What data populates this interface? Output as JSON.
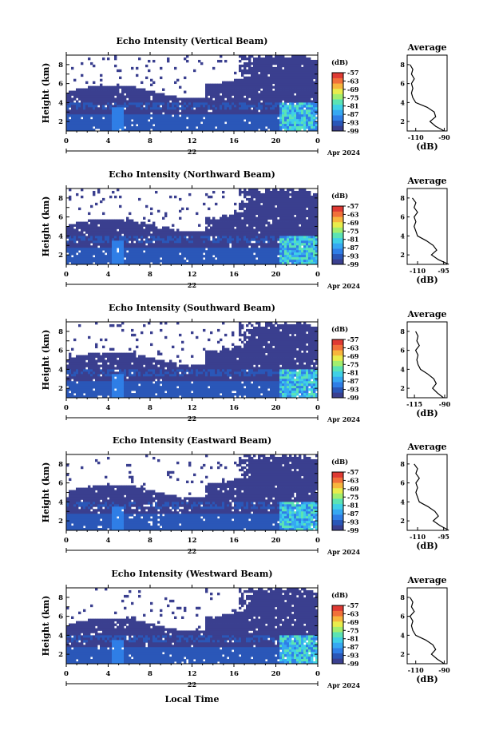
{
  "figure": {
    "xlabel_bottom": "Local Time",
    "colors": [
      "#3a3f8f",
      "#2a57b8",
      "#2f7ee6",
      "#36a8f2",
      "#3fd0e6",
      "#5be3b4",
      "#a2ee6e",
      "#e8ec4c",
      "#f7b53d",
      "#f1703a",
      "#df3a33"
    ]
  },
  "chart_data": [
    {
      "type": "heatmap",
      "title": "Echo Intensity (Vertical Beam)",
      "ylabel": "Height (km)",
      "yticks": [
        "2",
        "4",
        "6",
        "8"
      ],
      "xticks": [
        "0",
        "4",
        "8",
        "12",
        "16",
        "20",
        "0"
      ],
      "date_label": "22",
      "month_label": "Apr 2024",
      "colorbar_unit": "(dB)",
      "colorbar_ticks": [
        "-57",
        "-63",
        "-69",
        "-75",
        "-81",
        "-87",
        "-93",
        "-99"
      ],
      "avg_title": "Average",
      "avg_xticks": [
        "-110",
        "-90"
      ],
      "avg_xlabel": "(dB)",
      "avg_yticks": [
        "2",
        "4",
        "6",
        "8"
      ],
      "profile": {
        "height": [
          1.0,
          1.5,
          2.0,
          2.5,
          3.0,
          3.5,
          4.0,
          4.5,
          5.0,
          5.5,
          6.0,
          6.5,
          7.0,
          7.5,
          8.0
        ],
        "db": [
          -90,
          -96,
          -100,
          -96,
          -97,
          -102,
          -110,
          -112,
          -113,
          -112,
          -113,
          -111,
          -113,
          -112,
          -114
        ]
      }
    },
    {
      "type": "heatmap",
      "title": "Echo Intensity (Northward Beam)",
      "ylabel": "Height (km)",
      "yticks": [
        "2",
        "4",
        "6",
        "8"
      ],
      "xticks": [
        "0",
        "4",
        "8",
        "12",
        "16",
        "20",
        "0"
      ],
      "date_label": "22",
      "month_label": "Apr 2024",
      "colorbar_unit": "(dB)",
      "colorbar_ticks": [
        "-57",
        "-63",
        "-69",
        "-75",
        "-81",
        "-87",
        "-93",
        "-99"
      ],
      "avg_title": "Average",
      "avg_xticks": [
        "-110",
        "-95"
      ],
      "avg_xlabel": "(dB)",
      "avg_yticks": [
        "2",
        "4",
        "6",
        "8"
      ],
      "profile": {
        "height": [
          1.0,
          1.5,
          2.0,
          2.5,
          3.0,
          3.5,
          4.0,
          4.5,
          5.0,
          5.5,
          6.0,
          6.5,
          7.0,
          7.5,
          8.0
        ],
        "db": [
          -92,
          -98,
          -102,
          -99,
          -101,
          -105,
          -110,
          -111,
          -112,
          -111,
          -112,
          -110,
          -112,
          -111,
          -113
        ]
      }
    },
    {
      "type": "heatmap",
      "title": "Echo Intensity (Southward Beam)",
      "ylabel": "Height (km)",
      "yticks": [
        "2",
        "4",
        "6",
        "8"
      ],
      "xticks": [
        "0",
        "4",
        "8",
        "12",
        "16",
        "20",
        "0"
      ],
      "date_label": "22",
      "month_label": "Apr 2024",
      "colorbar_unit": "(dB)",
      "colorbar_ticks": [
        "-57",
        "-63",
        "-69",
        "-75",
        "-81",
        "-87",
        "-93",
        "-99"
      ],
      "avg_title": "Average",
      "avg_xticks": [
        "-115",
        "-90"
      ],
      "avg_xlabel": "(dB)",
      "avg_yticks": [
        "2",
        "4",
        "6",
        "8"
      ],
      "profile": {
        "height": [
          1.0,
          1.5,
          2.0,
          2.5,
          3.0,
          3.5,
          4.0,
          4.5,
          5.0,
          5.5,
          6.0,
          6.5,
          7.0,
          7.5,
          8.0
        ],
        "db": [
          -91,
          -96,
          -100,
          -97,
          -99,
          -104,
          -110,
          -112,
          -113,
          -112,
          -114,
          -111,
          -113,
          -112,
          -114
        ]
      }
    },
    {
      "type": "heatmap",
      "title": "Echo Intensity (Eastward Beam)",
      "ylabel": "Height (km)",
      "yticks": [
        "2",
        "4",
        "6",
        "8"
      ],
      "xticks": [
        "0",
        "4",
        "8",
        "12",
        "16",
        "20",
        "0"
      ],
      "date_label": "22",
      "month_label": "Apr 2024",
      "colorbar_unit": "(dB)",
      "colorbar_ticks": [
        "-57",
        "-63",
        "-69",
        "-75",
        "-81",
        "-87",
        "-93",
        "-99"
      ],
      "avg_title": "Average",
      "avg_xticks": [
        "-110",
        "-95"
      ],
      "avg_xlabel": "(dB)",
      "avg_yticks": [
        "2",
        "4",
        "6",
        "8"
      ],
      "profile": {
        "height": [
          1.0,
          1.5,
          2.0,
          2.5,
          3.0,
          3.5,
          4.0,
          4.5,
          5.0,
          5.5,
          6.0,
          6.5,
          7.0,
          7.5,
          8.0
        ],
        "db": [
          -92,
          -97,
          -101,
          -98,
          -100,
          -104,
          -109,
          -110,
          -111,
          -110,
          -111,
          -109,
          -111,
          -110,
          -112
        ]
      }
    },
    {
      "type": "heatmap",
      "title": "Echo Intensity (Westward Beam)",
      "ylabel": "Height (km)",
      "yticks": [
        "2",
        "4",
        "6",
        "8"
      ],
      "xticks": [
        "0",
        "4",
        "8",
        "12",
        "16",
        "20",
        "0"
      ],
      "date_label": "22",
      "month_label": "Apr 2024",
      "colorbar_unit": "(dB)",
      "colorbar_ticks": [
        "-57",
        "-63",
        "-69",
        "-75",
        "-81",
        "-87",
        "-93",
        "-99"
      ],
      "avg_title": "Average",
      "avg_xticks": [
        "-110",
        "-90"
      ],
      "avg_xlabel": "(dB)",
      "avg_yticks": [
        "2",
        "4",
        "6",
        "8"
      ],
      "profile": {
        "height": [
          1.0,
          1.5,
          2.0,
          2.5,
          3.0,
          3.5,
          4.0,
          4.5,
          5.0,
          5.5,
          6.0,
          6.5,
          7.0,
          7.5,
          8.0
        ],
        "db": [
          -90,
          -95,
          -99,
          -96,
          -98,
          -103,
          -110,
          -112,
          -113,
          -112,
          -114,
          -111,
          -113,
          -112,
          -114
        ]
      }
    }
  ]
}
